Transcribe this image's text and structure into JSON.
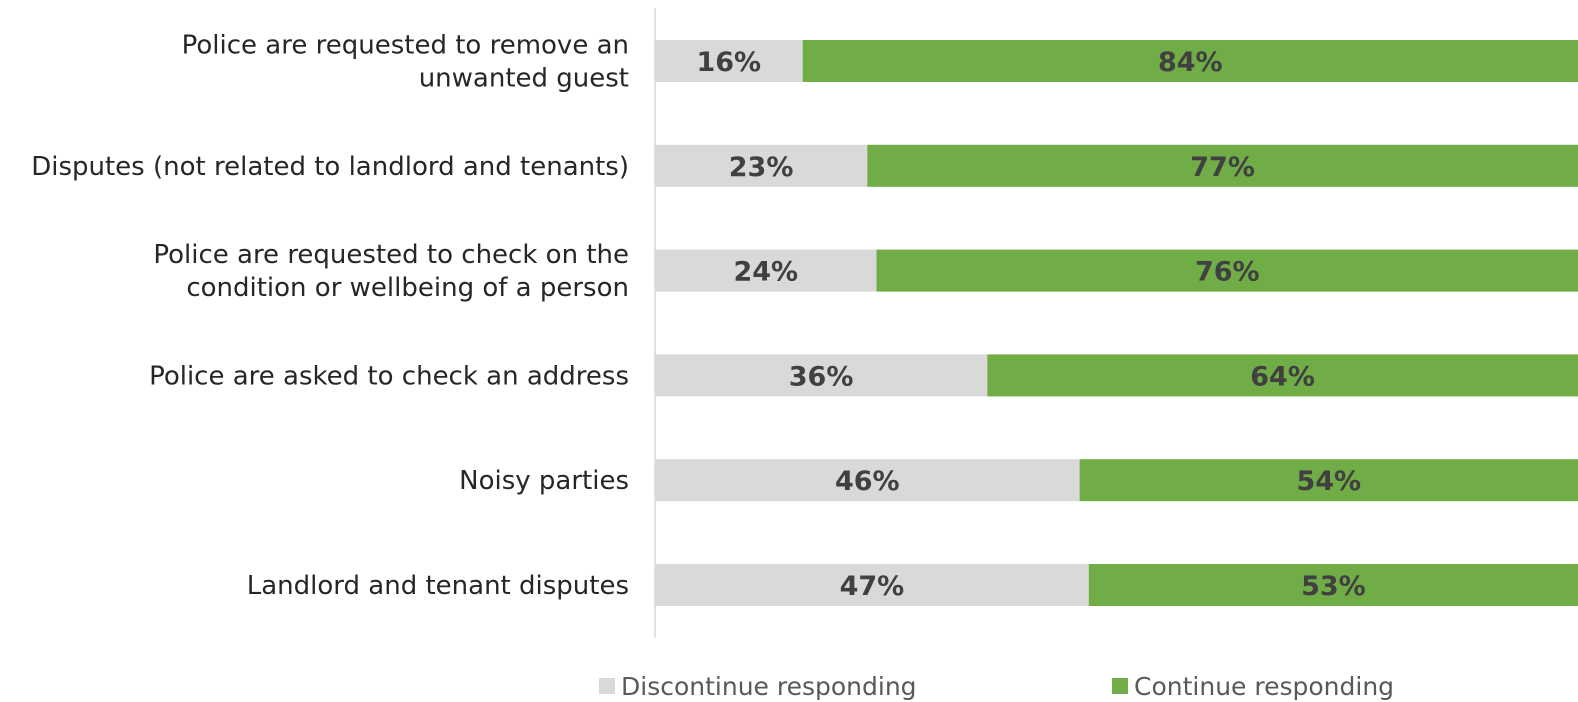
{
  "chart_data": {
    "type": "bar",
    "orientation": "horizontal",
    "stacked": true,
    "categories": [
      [
        "Police are requested to remove an",
        "unwanted guest"
      ],
      [
        "Disputes (not related to landlord and tenants)"
      ],
      [
        "Police are requested to check on the",
        "condition or wellbeing of a person"
      ],
      [
        "Police are asked to check an address"
      ],
      [
        "Noisy parties"
      ],
      [
        "Landlord and tenant disputes"
      ]
    ],
    "series": [
      {
        "name": "Discontinue responding",
        "color": "#d9d9d9",
        "values": [
          16,
          23,
          24,
          36,
          46,
          47
        ],
        "labels": [
          "16%",
          "23%",
          "24%",
          "36%",
          "46%",
          "47%"
        ]
      },
      {
        "name": "Continue responding",
        "color": "#70ad47",
        "values": [
          84,
          77,
          76,
          64,
          54,
          53
        ],
        "labels": [
          "84%",
          "77%",
          "76%",
          "64%",
          "54%",
          "53%"
        ]
      }
    ],
    "xlim": [
      0,
      100
    ],
    "grid": false,
    "legend": "bottom"
  }
}
